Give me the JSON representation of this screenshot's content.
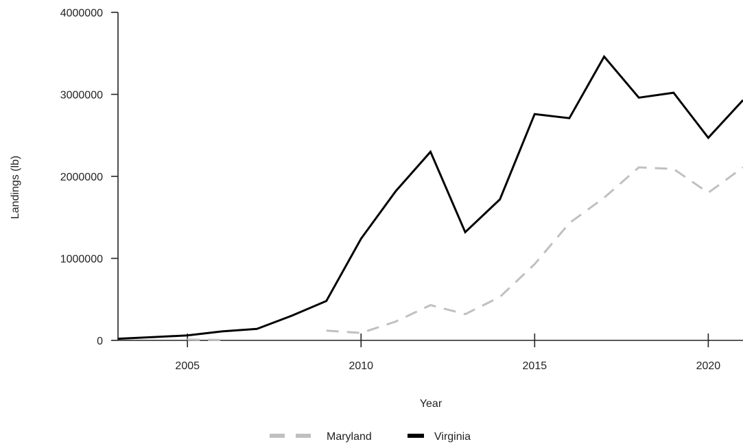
{
  "chart_data": {
    "type": "line",
    "xlabel": "Year",
    "ylabel": "Landings (lb)",
    "xlim": [
      2003,
      2021
    ],
    "ylim": [
      0,
      4000000
    ],
    "x_ticks": [
      2005,
      2010,
      2015,
      2020
    ],
    "y_ticks": [
      0,
      1000000,
      2000000,
      3000000,
      4000000
    ],
    "x_tick_labels": [
      "2005",
      "2010",
      "2015",
      "2020"
    ],
    "y_tick_labels": [
      "0",
      "1000000",
      "2000000",
      "3000000",
      "4000000"
    ],
    "grid": false,
    "legend_position": "bottom-center",
    "series": [
      {
        "name": "Maryland",
        "color": "#c0c0c0",
        "dash": "dashed",
        "segments": [
          {
            "x": [
              2005,
              2006
            ],
            "y": [
              10000,
              5000
            ]
          },
          {
            "x": [
              2009,
              2010,
              2011,
              2012,
              2013,
              2014,
              2015,
              2016,
              2017,
              2018,
              2019,
              2020,
              2021
            ],
            "y": [
              120000,
              90000,
              230000,
              430000,
              320000,
              530000,
              930000,
              1430000,
              1740000,
              2110000,
              2090000,
              1800000,
              2110000
            ]
          }
        ]
      },
      {
        "name": "Virginia",
        "color": "#000000",
        "dash": "solid",
        "segments": [
          {
            "x": [
              2003,
              2004,
              2005,
              2006,
              2007,
              2008,
              2009,
              2010,
              2011,
              2012,
              2013,
              2014,
              2015,
              2016,
              2017,
              2018,
              2019,
              2020,
              2021
            ],
            "y": [
              20000,
              40000,
              60000,
              110000,
              140000,
              300000,
              480000,
              1240000,
              1820000,
              2300000,
              1320000,
              1720000,
              2760000,
              2710000,
              3460000,
              2960000,
              3020000,
              2470000,
              2930000
            ]
          }
        ]
      }
    ]
  }
}
